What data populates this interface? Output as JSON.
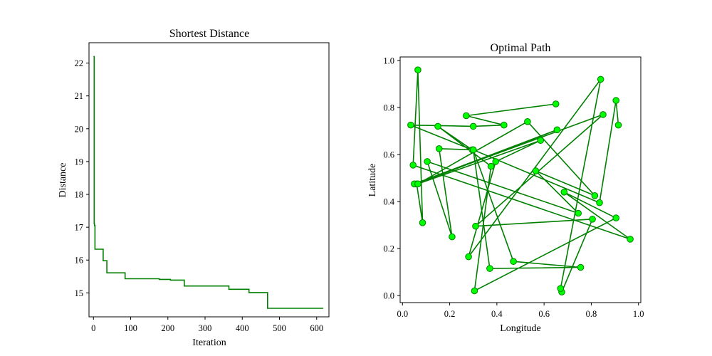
{
  "chart_data": [
    {
      "type": "line",
      "title": "Shortest Distance",
      "xlabel": "Iteration",
      "ylabel": "Distance",
      "xlim": [
        -12,
        633
      ],
      "ylim": [
        14.27,
        22.62
      ],
      "xticks": [
        0,
        100,
        200,
        300,
        400,
        500,
        600
      ],
      "yticks": [
        15,
        16,
        17,
        18,
        19,
        20,
        21,
        22
      ],
      "grid": false,
      "color": "#008000",
      "series": [
        {
          "step": true,
          "x": [
            0,
            1,
            2,
            3,
            4,
            24,
            25,
            26,
            34,
            35,
            36,
            83,
            84,
            85,
            175,
            176,
            177,
            205,
            206,
            207,
            242,
            243,
            244,
            362,
            363,
            364,
            416,
            417,
            418,
            466,
            467,
            468,
            618
          ],
          "y": [
            22.2,
            22.2,
            17.1,
            17.05,
            16.33,
            16.33,
            16.33,
            15.98,
            15.98,
            15.98,
            15.61,
            15.61,
            15.61,
            15.43,
            15.43,
            15.43,
            15.41,
            15.41,
            15.41,
            15.39,
            15.39,
            15.39,
            15.21,
            15.21,
            15.21,
            15.11,
            15.11,
            15.11,
            15.01,
            15.01,
            15.01,
            14.53,
            14.53
          ]
        }
      ]
    },
    {
      "type": "scatter",
      "title": "Optimal Path",
      "xlabel": "Longitude",
      "ylabel": "Latitude",
      "xlim": [
        -0.01,
        1.01
      ],
      "ylim": [
        -0.03,
        1.015
      ],
      "xticks": [
        0.0,
        0.2,
        0.4,
        0.6,
        0.8,
        1.0
      ],
      "yticks": [
        0.0,
        0.2,
        0.4,
        0.6,
        0.8,
        1.0
      ],
      "xtick_labels": [
        "0.0",
        "0.2",
        "0.4",
        "0.6",
        "0.8",
        "1.0"
      ],
      "ytick_labels": [
        "0.0",
        "0.2",
        "0.4",
        "0.6",
        "0.8",
        "1.0"
      ],
      "grid": false,
      "line_color": "#008000",
      "marker_face": "#00ff00",
      "marker_edge": "#008000",
      "path": [
        [
          0.65,
          0.815
        ],
        [
          0.27,
          0.765
        ],
        [
          0.43,
          0.725
        ],
        [
          0.3,
          0.72
        ],
        [
          0.035,
          0.725
        ],
        [
          0.295,
          0.62
        ],
        [
          0.15,
          0.72
        ],
        [
          0.375,
          0.55
        ],
        [
          0.305,
          0.02
        ],
        [
          0.905,
          0.33
        ],
        [
          0.685,
          0.44
        ],
        [
          0.965,
          0.24
        ],
        [
          0.045,
          0.555
        ],
        [
          0.065,
          0.96
        ],
        [
          0.085,
          0.31
        ],
        [
          0.06,
          0.475
        ],
        [
          0.655,
          0.705
        ],
        [
          0.05,
          0.475
        ],
        [
          0.85,
          0.77
        ],
        [
          0.31,
          0.295
        ],
        [
          0.805,
          0.325
        ],
        [
          0.675,
          0.015
        ],
        [
          0.67,
          0.03
        ],
        [
          0.84,
          0.92
        ],
        [
          0.28,
          0.165
        ],
        [
          0.395,
          0.57
        ],
        [
          0.585,
          0.66
        ],
        [
          0.065,
          0.475
        ],
        [
          0.53,
          0.74
        ],
        [
          0.815,
          0.425
        ],
        [
          0.565,
          0.53
        ],
        [
          0.745,
          0.35
        ],
        [
          0.105,
          0.57
        ],
        [
          0.21,
          0.25
        ],
        [
          0.155,
          0.625
        ],
        [
          0.3,
          0.62
        ],
        [
          0.37,
          0.115
        ],
        [
          0.755,
          0.12
        ],
        [
          0.47,
          0.145
        ],
        [
          0.3,
          0.62
        ],
        [
          0.835,
          0.395
        ],
        [
          0.905,
          0.83
        ],
        [
          0.915,
          0.725
        ]
      ]
    }
  ]
}
